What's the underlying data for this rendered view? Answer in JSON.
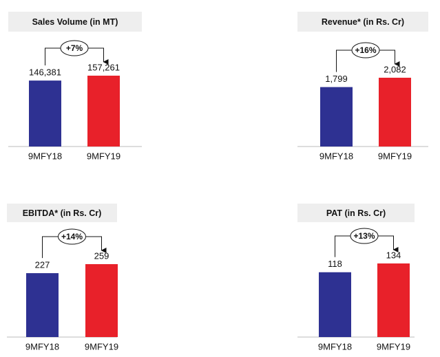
{
  "chart_data": [
    {
      "type": "bar",
      "title": "Sales Volume (in MT)",
      "categories": [
        "9MFY18",
        "9MFY19"
      ],
      "values": [
        146381,
        157261
      ],
      "value_labels": [
        "146,381",
        "157,261"
      ],
      "colors": [
        "#2e3192",
        "#e8212a"
      ],
      "change": "+7%"
    },
    {
      "type": "bar",
      "title": "Revenue* (in Rs. Cr)",
      "categories": [
        "9MFY18",
        "9MFY19"
      ],
      "values": [
        1799,
        2082
      ],
      "value_labels": [
        "1,799",
        "2,082"
      ],
      "colors": [
        "#2e3192",
        "#e8212a"
      ],
      "change": "+16%"
    },
    {
      "type": "bar",
      "title": "EBITDA* (in Rs. Cr)",
      "categories": [
        "9MFY18",
        "9MFY19"
      ],
      "values": [
        227,
        259
      ],
      "colors": [
        "#2e3192",
        "#e8212a"
      ],
      "change": "+14%"
    },
    {
      "type": "bar",
      "title": "PAT (in Rs. Cr)",
      "categories": [
        "9MFY18",
        "9MFY19"
      ],
      "values": [
        118,
        134
      ],
      "colors": [
        "#2e3192",
        "#e8212a"
      ],
      "change": "+13%"
    }
  ]
}
